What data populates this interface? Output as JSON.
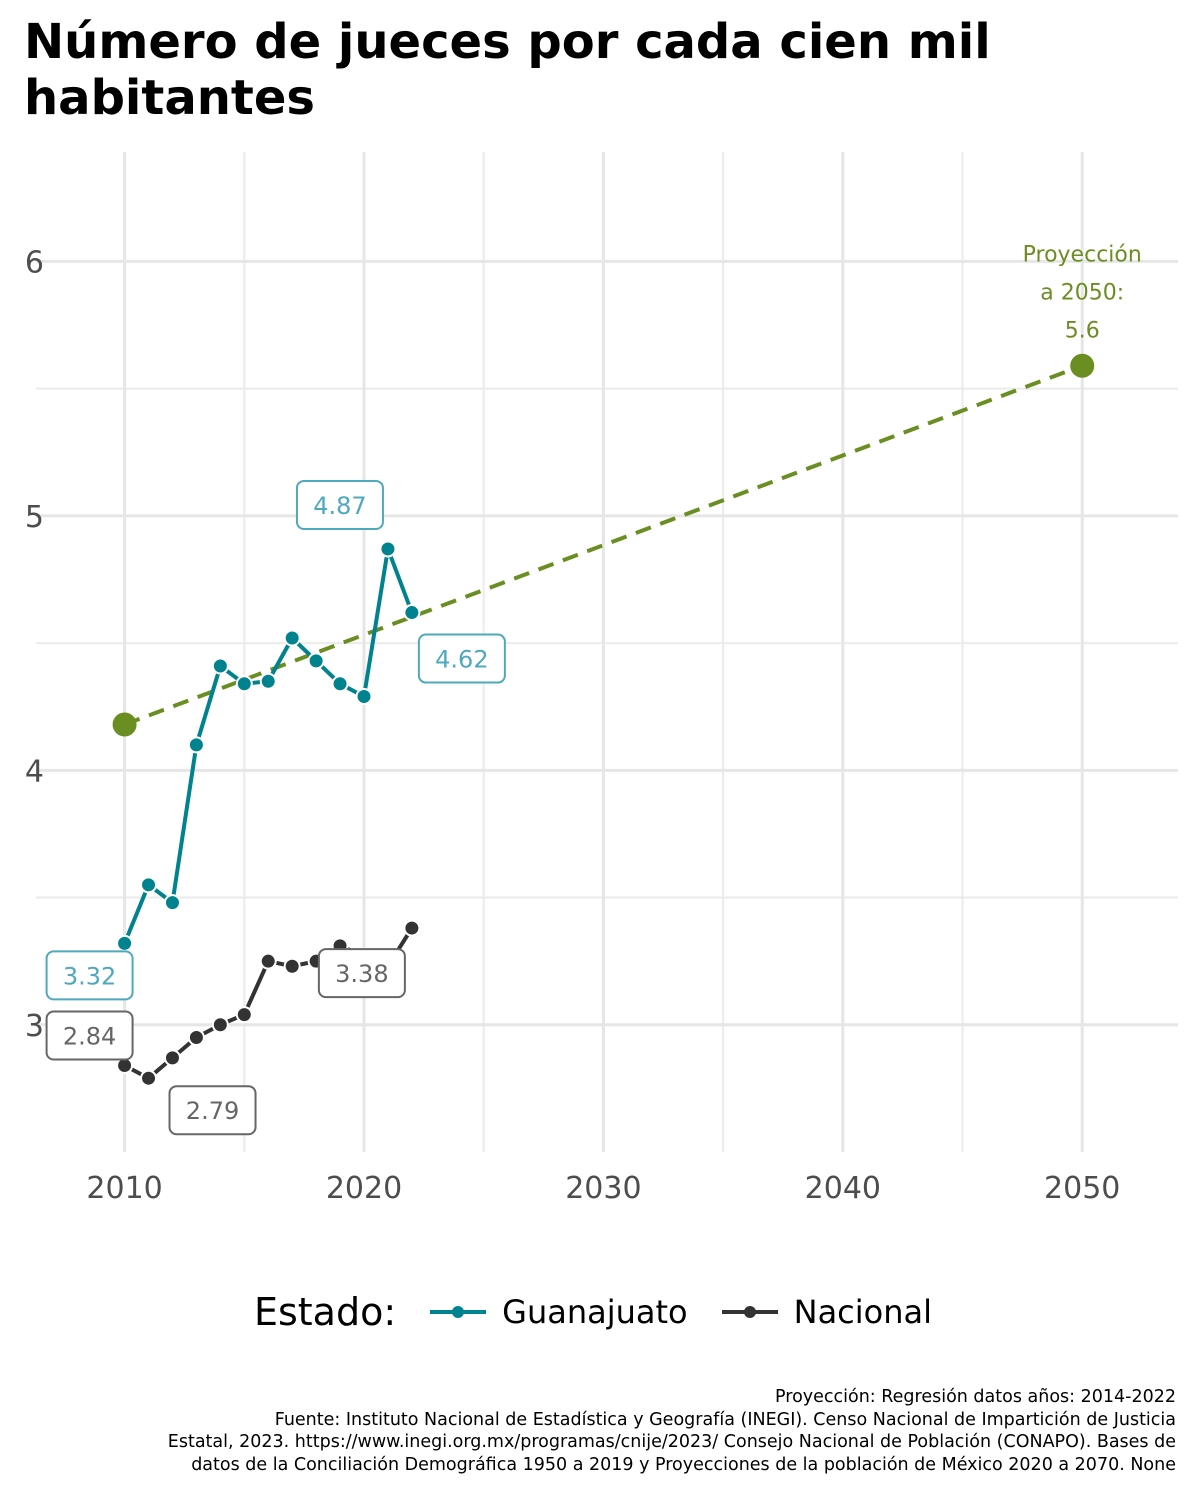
{
  "title": "Número de jueces por cada cien mil habitantes",
  "chart_data": {
    "type": "line",
    "title": "Número de jueces por cada cien mil habitantes",
    "xlabel": "",
    "ylabel": "",
    "xlim": [
      2006.3,
      2054
    ],
    "ylim": [
      2.5,
      6.43
    ],
    "x_ticks": [
      2010,
      2020,
      2030,
      2040,
      2050
    ],
    "y_ticks": [
      3,
      4,
      5,
      6
    ],
    "grid": true,
    "legend_position": "bottom",
    "legend_title": "Estado:",
    "series": [
      {
        "name": "Guanajuato",
        "color": "#00838f",
        "label_color": "#4fa9bd",
        "x": [
          2010,
          2011,
          2012,
          2013,
          2014,
          2015,
          2016,
          2017,
          2018,
          2019,
          2020,
          2021,
          2022
        ],
        "y": [
          3.32,
          3.55,
          3.48,
          4.1,
          4.41,
          4.34,
          4.35,
          4.52,
          4.43,
          4.34,
          4.29,
          4.87,
          4.62
        ],
        "labels": [
          "3.32",
          "4.87",
          "4.62"
        ]
      },
      {
        "name": "Nacional",
        "color": "#333333",
        "label_color": "#666666",
        "x": [
          2010,
          2011,
          2012,
          2013,
          2014,
          2015,
          2016,
          2017,
          2018,
          2019,
          2020,
          2021,
          2022
        ],
        "y": [
          2.84,
          2.79,
          2.87,
          2.95,
          3.0,
          3.04,
          3.25,
          3.23,
          3.25,
          3.31,
          3.27,
          3.23,
          3.38
        ],
        "labels": [
          "2.84",
          "2.79",
          "3.38"
        ]
      }
    ],
    "projection": {
      "x": [
        2010,
        2050
      ],
      "y": [
        4.18,
        5.59
      ],
      "color": "#6b8e23",
      "label_lines": [
        "Proyección",
        "a 2050:",
        "5.6"
      ]
    }
  },
  "legend": {
    "title": "Estado:",
    "items": [
      {
        "label": "Guanajuato",
        "color": "#00838f"
      },
      {
        "label": "Nacional",
        "color": "#333333"
      }
    ]
  },
  "caption": {
    "lines": [
      "Proyección: Regresión datos años: 2014-2022",
      "Fuente: Instituto Nacional de Estadística y Geografía (INEGI). Censo Nacional de Impartición de Justicia",
      "Estatal, 2023. https://www.inegi.org.mx/programas/cnije/2023/ Consejo Nacional de Población (CONAPO). Bases de",
      "datos de la Conciliación Demográfica 1950 a 2019 y Proyecciones de la población de México 2020 a 2070. None"
    ]
  }
}
